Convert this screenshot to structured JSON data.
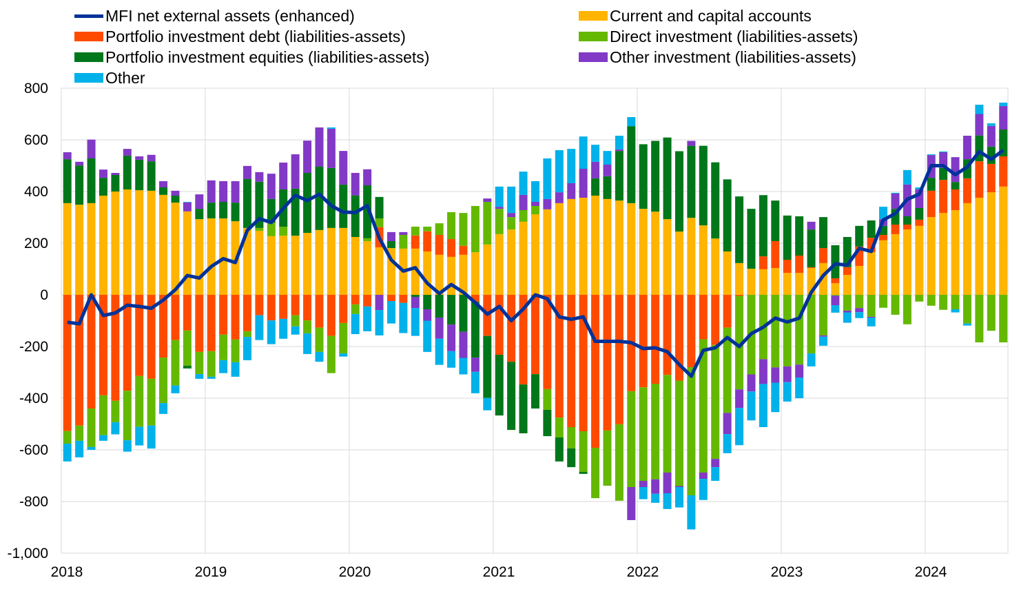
{
  "chart_data": {
    "type": "bar",
    "stacked": true,
    "title": "",
    "xlabel": "",
    "ylabel": "",
    "ylim": [
      -1000,
      800
    ],
    "yticks": [
      "800",
      "600",
      "400",
      "200",
      "0",
      "-200",
      "-400",
      "-600",
      "-800",
      "-1,000"
    ],
    "ytick_values": [
      800,
      600,
      400,
      200,
      0,
      -200,
      -400,
      -600,
      -800,
      -1000
    ],
    "xticks": [
      "2018",
      "2019",
      "2020",
      "2021",
      "2022",
      "2023",
      "2024"
    ],
    "grid": true,
    "legend_position": "top",
    "x": [
      "2018-01",
      "2018-02",
      "2018-03",
      "2018-04",
      "2018-05",
      "2018-06",
      "2018-07",
      "2018-08",
      "2018-09",
      "2018-10",
      "2018-11",
      "2018-12",
      "2019-01",
      "2019-02",
      "2019-03",
      "2019-04",
      "2019-05",
      "2019-06",
      "2019-07",
      "2019-08",
      "2019-09",
      "2019-10",
      "2019-11",
      "2019-12",
      "2020-01",
      "2020-02",
      "2020-03",
      "2020-04",
      "2020-05",
      "2020-06",
      "2020-07",
      "2020-08",
      "2020-09",
      "2020-10",
      "2020-11",
      "2020-12",
      "2021-01",
      "2021-02",
      "2021-03",
      "2021-04",
      "2021-05",
      "2021-06",
      "2021-07",
      "2021-08",
      "2021-09",
      "2021-10",
      "2021-11",
      "2021-12",
      "2022-01",
      "2022-02",
      "2022-03",
      "2022-04",
      "2022-05",
      "2022-06",
      "2022-07",
      "2022-08",
      "2022-09",
      "2022-10",
      "2022-11",
      "2022-12",
      "2023-01",
      "2023-02",
      "2023-03",
      "2023-04",
      "2023-05",
      "2023-06",
      "2023-07",
      "2023-08",
      "2023-09",
      "2023-10",
      "2023-11",
      "2023-12",
      "2024-01",
      "2024-02",
      "2024-03",
      "2024-04",
      "2024-05",
      "2024-06",
      "2024-07"
    ],
    "series": [
      {
        "name": "Current and capital accounts",
        "kind": "bar",
        "color": "#FFB400",
        "values": [
          355,
          349,
          355,
          384,
          400,
          408,
          405,
          403,
          387,
          357,
          323,
          293,
          296,
          296,
          285,
          259,
          248,
          227,
          229,
          229,
          240,
          251,
          259,
          259,
          224,
          208,
          184,
          181,
          179,
          179,
          168,
          155,
          147,
          155,
          165,
          195,
          235,
          253,
          283,
          312,
          331,
          355,
          371,
          376,
          384,
          371,
          365,
          355,
          333,
          322,
          293,
          245,
          298,
          269,
          218,
          168,
          123,
          101,
          99,
          104,
          85,
          85,
          104,
          123,
          45,
          77,
          112,
          165,
          211,
          235,
          253,
          267,
          301,
          317,
          328,
          355,
          376,
          397,
          419
        ]
      },
      {
        "name": "Portfolio investment debt (liabilities-assets)",
        "kind": "bar",
        "color": "#FF4B00",
        "values": [
          -527,
          -506,
          -440,
          -389,
          -410,
          -371,
          -314,
          -325,
          -243,
          -175,
          -138,
          -221,
          -218,
          -154,
          -173,
          -141,
          -79,
          -99,
          -93,
          -79,
          -99,
          -127,
          -159,
          -109,
          -37,
          -45,
          78,
          -24,
          -31,
          51,
          78,
          77,
          69,
          35,
          -26,
          -159,
          -232,
          -259,
          -347,
          -307,
          -365,
          -475,
          -512,
          -528,
          -592,
          -525,
          -501,
          -373,
          -358,
          -344,
          -310,
          -332,
          -280,
          -172,
          -194,
          -127,
          -4,
          0,
          50,
          104,
          51,
          67,
          3,
          58,
          19,
          30,
          75,
          56,
          21,
          37,
          19,
          24,
          102,
          128,
          80,
          96,
          141,
          110,
          117
        ]
      },
      {
        "name": "Direct investment (liabilities-assets)",
        "kind": "bar",
        "color": "#65B800",
        "values": [
          -49,
          -59,
          -149,
          -154,
          -83,
          -192,
          -197,
          -181,
          -176,
          -176,
          -136,
          -86,
          -99,
          -99,
          -88,
          -22,
          11,
          53,
          35,
          -43,
          -50,
          -94,
          -144,
          -118,
          -37,
          11,
          34,
          0,
          53,
          34,
          18,
          45,
          104,
          127,
          179,
          165,
          98,
          48,
          45,
          32,
          -80,
          -77,
          -82,
          -157,
          -195,
          -214,
          -296,
          -371,
          -362,
          -370,
          -378,
          -408,
          -496,
          -516,
          -441,
          -330,
          -362,
          -308,
          -249,
          -281,
          -277,
          -270,
          -227,
          -157,
          -3,
          -61,
          -51,
          -85,
          -50,
          -77,
          -114,
          -26,
          -42,
          -58,
          -56,
          -111,
          -184,
          -139,
          -184
        ]
      },
      {
        "name": "Portfolio investment equities (liabilities-assets)",
        "kind": "bar",
        "color": "#00771A",
        "values": [
          170,
          152,
          173,
          69,
          64,
          131,
          118,
          114,
          29,
          27,
          -11,
          40,
          61,
          64,
          72,
          190,
          179,
          91,
          144,
          182,
          232,
          245,
          232,
          168,
          161,
          205,
          83,
          27,
          0,
          -8,
          -56,
          -88,
          -115,
          -143,
          -217,
          -240,
          -235,
          -264,
          -189,
          -133,
          -102,
          -93,
          -73,
          -8,
          67,
          88,
          192,
          298,
          250,
          274,
          316,
          311,
          279,
          308,
          295,
          279,
          258,
          232,
          237,
          157,
          171,
          152,
          146,
          120,
          128,
          117,
          80,
          67,
          35,
          61,
          32,
          45,
          50,
          46,
          29,
          74,
          100,
          67,
          104
        ]
      },
      {
        "name": "Other investment (liabilities-assets)",
        "kind": "bar",
        "color": "#8139C6",
        "values": [
          27,
          14,
          73,
          32,
          8,
          26,
          13,
          25,
          24,
          19,
          35,
          56,
          86,
          80,
          83,
          50,
          37,
          98,
          104,
          133,
          125,
          152,
          152,
          130,
          87,
          62,
          -59,
          35,
          11,
          -43,
          -44,
          -82,
          -103,
          -101,
          -55,
          13,
          8,
          16,
          59,
          16,
          40,
          42,
          61,
          112,
          64,
          45,
          6,
          -128,
          -24,
          -56,
          -80,
          -4,
          19,
          -24,
          -32,
          -82,
          -72,
          -66,
          -96,
          -59,
          -61,
          -50,
          30,
          -5,
          -37,
          -7,
          -16,
          -3,
          26,
          59,
          123,
          73,
          88,
          61,
          96,
          91,
          83,
          80,
          91
        ]
      },
      {
        "name": "Other",
        "kind": "bar",
        "color": "#00B1EA",
        "values": [
          -69,
          -64,
          -11,
          -22,
          -47,
          -44,
          -72,
          -89,
          -42,
          -30,
          2,
          -18,
          -8,
          -50,
          -56,
          -90,
          -96,
          -92,
          -77,
          -32,
          -80,
          -38,
          5,
          -12,
          -78,
          -96,
          -98,
          -87,
          -117,
          -108,
          -121,
          -101,
          -64,
          -64,
          -83,
          -48,
          78,
          102,
          90,
          80,
          157,
          163,
          133,
          125,
          66,
          53,
          53,
          35,
          -47,
          -35,
          -61,
          -79,
          -132,
          -82,
          -53,
          -74,
          -144,
          -112,
          -167,
          -114,
          -75,
          -80,
          -50,
          -35,
          -29,
          -40,
          -23,
          -34,
          48,
          3,
          56,
          7,
          3,
          3,
          -12,
          -8,
          36,
          10,
          13
        ]
      },
      {
        "name": "MFI net external assets (enhanced)",
        "kind": "line",
        "color": "#003299",
        "values": [
          -106,
          -112,
          0,
          -80,
          -70,
          -40,
          -45,
          -52,
          -20,
          20,
          75,
          65,
          110,
          140,
          125,
          250,
          295,
          280,
          335,
          385,
          365,
          390,
          345,
          320,
          319,
          345,
          220,
          135,
          92,
          105,
          45,
          5,
          40,
          10,
          -30,
          -75,
          -45,
          -100,
          -55,
          0,
          -15,
          -85,
          -95,
          -85,
          -180,
          -180,
          -180,
          -185,
          -208,
          -205,
          -220,
          -270,
          -315,
          -215,
          -205,
          -165,
          -200,
          -150,
          -125,
          -90,
          -105,
          -90,
          10,
          75,
          120,
          115,
          180,
          168,
          290,
          315,
          370,
          390,
          500,
          500,
          465,
          495,
          555,
          525,
          560
        ]
      }
    ]
  },
  "legend": {
    "items": [
      {
        "label": "MFI net external assets (enhanced)",
        "color": "#003299",
        "kind": "line"
      },
      {
        "label": "Current and capital accounts",
        "color": "#FFB400",
        "kind": "bar"
      },
      {
        "label": "Portfolio investment debt (liabilities-assets)",
        "color": "#FF4B00",
        "kind": "bar"
      },
      {
        "label": "Direct investment (liabilities-assets)",
        "color": "#65B800",
        "kind": "bar"
      },
      {
        "label": "Portfolio investment equities (liabilities-assets)",
        "color": "#00771A",
        "kind": "bar"
      },
      {
        "label": "Other investment (liabilities-assets)",
        "color": "#8139C6",
        "kind": "bar"
      },
      {
        "label": "Other",
        "color": "#00B1EA",
        "kind": "bar"
      }
    ]
  }
}
